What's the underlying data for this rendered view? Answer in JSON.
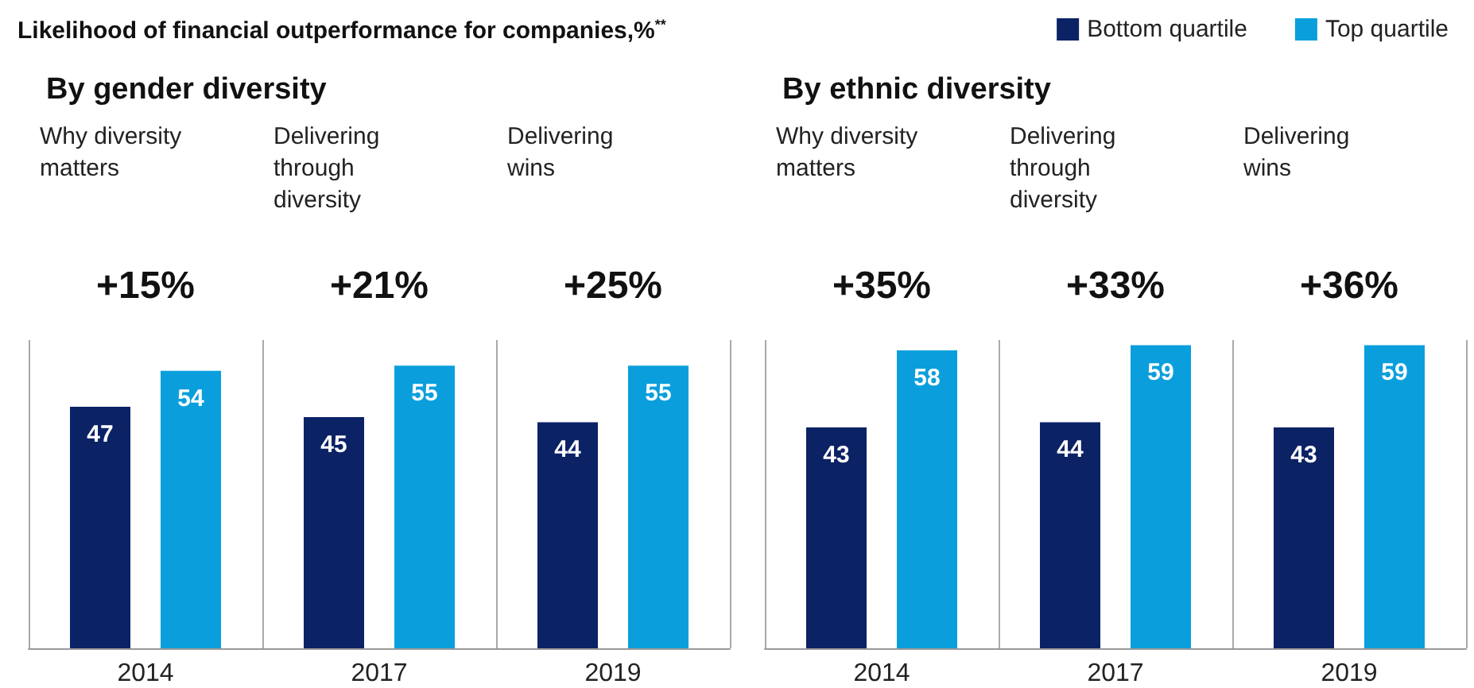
{
  "chart_data": [
    {
      "type": "bar",
      "title": "Likelihood of financial outperformance for companies,%$^{**}$",
      "subtitle": "By gender diversity",
      "categories": [
        "2014",
        "2017",
        "2019"
      ],
      "series": [
        {
          "color": "#0b2265",
          "values": [
            47,
            45,
            44
          ]
        },
        {
          "color": "#0a9fdc",
          "values": [
            54,
            55,
            55
          ]
        }
      ],
      "data_labels": true,
      "grid": "x",
      "legend": false,
      "annotations": [
        "Why diversity matters",
        "Delivering through diversity",
        "Delivering wins",
        "+15%",
        "+21%",
        "+25%"
      ]
    },
    {
      "type": "bar",
      "subtitle": "By ethnic diversity",
      "categories": [
        "2014",
        "2017",
        "2019"
      ],
      "series": [
        {
          "name": "Bottom quartile",
          "color": "#0b2265",
          "values": [
            43,
            44,
            43
          ]
        },
        {
          "name": "Top quartile",
          "color": "#0a9fdc",
          "values": [
            58,
            59,
            59
          ]
        }
      ],
      "data_labels": true,
      "grid": "x",
      "legend": "top right",
      "annotations": [
        "Why diversity matters",
        "Delivering through diversity",
        "Delivering wins",
        "+35%",
        "+33%",
        "+36%"
      ]
    }
  ]
}
